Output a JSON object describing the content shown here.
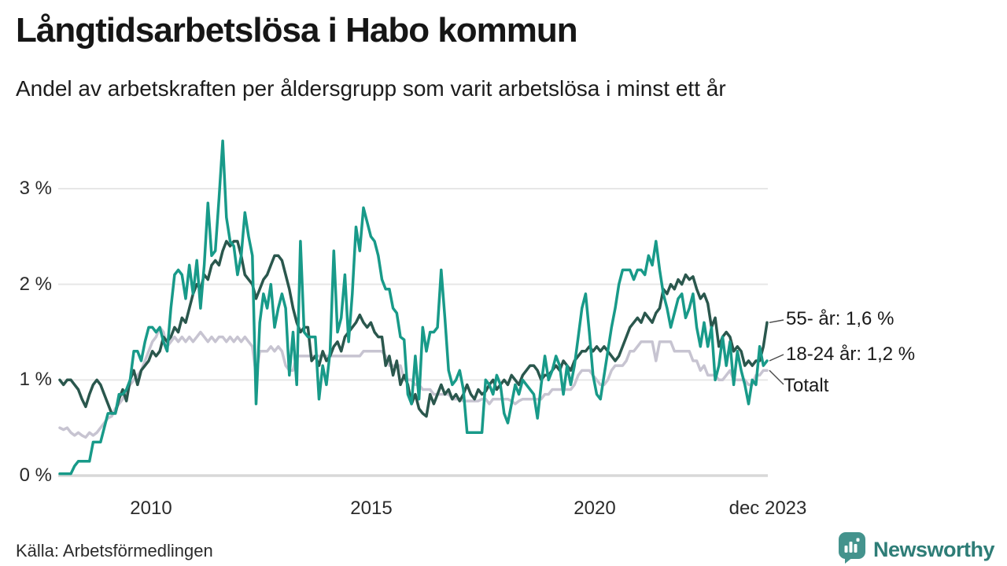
{
  "header": {
    "title": "Långtidsarbetslösa i Habo kommun",
    "subtitle": "Andel av arbetskraften per åldersgrupp som varit arbetslösa i minst ett år"
  },
  "footer": {
    "source": "Källa: Arbetsförmedlingen",
    "brand": "Newsworthy"
  },
  "colors": {
    "series_18_24": "#189a89",
    "series_55": "#2a574d",
    "series_totalt": "#c7c4d1",
    "gridline": "#e7e7e7",
    "axisline": "#d8d8d8",
    "connector": "#4a4a4a",
    "brand_teal": "#44938d"
  },
  "chart_data": {
    "type": "line",
    "title": "Långtidsarbetslösa i Habo kommun",
    "subtitle": "Andel av arbetskraften per åldersgrupp som varit arbetslösa i minst ett år",
    "unit": "%",
    "x_start": "2008-01",
    "x_end": "2023-12",
    "x_interval": "monthly",
    "x_ticks": [
      "2010",
      "2015",
      "2020",
      "dec 2023"
    ],
    "y_ticks": [
      "0 %",
      "1 %",
      "2 %",
      "3 %"
    ],
    "ylim": [
      0,
      3.6
    ],
    "grid": true,
    "legend_position": "line-end-labels-right",
    "series": [
      {
        "name": "55- år",
        "end_label": "55- år: 1,6 %",
        "last_value": 1.6,
        "color": "#2a574d",
        "values": [
          1.0,
          0.95,
          1.0,
          1.0,
          0.95,
          0.9,
          0.8,
          0.72,
          0.85,
          0.95,
          1.0,
          0.95,
          0.85,
          0.75,
          0.65,
          0.65,
          0.8,
          0.9,
          0.78,
          1.0,
          1.1,
          0.95,
          1.1,
          1.15,
          1.2,
          1.3,
          1.25,
          1.3,
          1.45,
          1.4,
          1.45,
          1.55,
          1.5,
          1.65,
          1.6,
          1.75,
          1.9,
          2.0,
          1.95,
          2.1,
          2.05,
          2.2,
          2.25,
          2.2,
          2.35,
          2.45,
          2.4,
          2.45,
          2.45,
          2.3,
          2.1,
          2.05,
          2.0,
          1.85,
          1.95,
          2.05,
          2.1,
          2.2,
          2.3,
          2.3,
          2.25,
          2.1,
          1.95,
          1.75,
          1.6,
          1.5,
          1.55,
          1.55,
          1.2,
          1.25,
          1.15,
          1.3,
          1.2,
          1.25,
          1.35,
          1.4,
          1.3,
          1.45,
          1.5,
          1.55,
          1.6,
          1.68,
          1.6,
          1.55,
          1.6,
          1.5,
          1.45,
          1.45,
          1.15,
          1.25,
          1.05,
          1.2,
          0.95,
          1.05,
          0.95,
          0.75,
          0.85,
          0.7,
          0.65,
          0.62,
          0.85,
          0.75,
          0.85,
          0.95,
          0.85,
          0.9,
          0.8,
          0.85,
          0.78,
          0.85,
          0.95,
          0.85,
          0.8,
          0.9,
          0.85,
          0.88,
          0.95,
          1.0,
          0.9,
          0.95,
          1.0,
          0.95,
          1.05,
          1.0,
          0.95,
          1.05,
          1.1,
          1.15,
          1.15,
          1.1,
          1.0,
          1.05,
          1.05,
          1.1,
          1.15,
          1.1,
          1.2,
          1.15,
          1.1,
          1.2,
          1.25,
          1.3,
          1.3,
          1.35,
          1.3,
          1.35,
          1.3,
          1.35,
          1.3,
          1.25,
          1.2,
          1.25,
          1.35,
          1.45,
          1.55,
          1.6,
          1.65,
          1.6,
          1.7,
          1.65,
          1.6,
          1.7,
          1.75,
          1.95,
          1.9,
          2.0,
          1.95,
          2.05,
          2.0,
          2.1,
          2.05,
          2.08,
          1.95,
          1.85,
          1.9,
          1.8,
          1.55,
          1.65,
          1.35,
          1.45,
          1.5,
          1.45,
          1.3,
          1.35,
          1.3,
          1.15,
          1.2,
          1.15,
          1.2,
          1.2,
          1.35,
          1.6
        ]
      },
      {
        "name": "18-24 år",
        "end_label": "18-24 år: 1,2 %",
        "last_value": 1.2,
        "color": "#189a89",
        "values": [
          0.02,
          0.02,
          0.02,
          0.02,
          0.1,
          0.15,
          0.15,
          0.15,
          0.15,
          0.35,
          0.35,
          0.35,
          0.5,
          0.65,
          0.65,
          0.65,
          0.85,
          0.85,
          0.9,
          1.0,
          1.3,
          1.3,
          1.2,
          1.4,
          1.55,
          1.55,
          1.5,
          1.55,
          1.4,
          1.3,
          1.75,
          2.1,
          2.15,
          2.1,
          1.85,
          2.2,
          1.9,
          2.25,
          1.75,
          2.2,
          2.85,
          2.3,
          2.35,
          2.9,
          3.5,
          2.7,
          2.45,
          2.4,
          2.1,
          2.3,
          2.75,
          2.5,
          2.3,
          0.75,
          1.6,
          1.9,
          1.75,
          2.0,
          1.55,
          1.75,
          1.9,
          1.75,
          1.05,
          1.5,
          0.95,
          2.45,
          1.5,
          1.45,
          1.45,
          1.45,
          0.8,
          1.15,
          0.95,
          1.3,
          2.35,
          1.5,
          1.65,
          2.1,
          1.4,
          1.9,
          2.6,
          2.35,
          2.8,
          2.65,
          2.5,
          2.45,
          2.3,
          2.05,
          1.95,
          1.95,
          1.75,
          1.7,
          1.45,
          1.42,
          0.85,
          0.75,
          1.25,
          0.8,
          1.55,
          1.3,
          1.5,
          1.5,
          1.55,
          2.15,
          1.65,
          1.1,
          0.95,
          1.0,
          1.1,
          0.9,
          0.45,
          0.45,
          0.45,
          0.45,
          0.45,
          1.0,
          0.95,
          0.85,
          1.05,
          0.95,
          0.65,
          0.55,
          0.75,
          0.95,
          0.85,
          1.0,
          0.95,
          0.9,
          0.85,
          0.6,
          0.95,
          1.25,
          1.0,
          1.1,
          1.25,
          1.15,
          0.85,
          1.15,
          0.95,
          1.15,
          1.45,
          1.75,
          1.9,
          1.5,
          1.05,
          0.85,
          0.8,
          1.05,
          1.3,
          1.55,
          1.75,
          2.0,
          2.15,
          2.15,
          2.15,
          2.05,
          2.15,
          2.15,
          2.1,
          2.3,
          2.2,
          2.45,
          2.15,
          1.9,
          1.75,
          1.55,
          1.7,
          1.85,
          1.9,
          1.65,
          1.75,
          1.9,
          1.55,
          1.35,
          1.6,
          1.35,
          1.55,
          1.0,
          1.15,
          1.45,
          1.15,
          1.4,
          0.95,
          1.3,
          1.1,
          0.95,
          0.75,
          1.0,
          0.95,
          1.35,
          1.15,
          1.2
        ]
      },
      {
        "name": "Totalt",
        "end_label": "Totalt",
        "last_value": 1.1,
        "color": "#c7c4d1",
        "values": [
          0.5,
          0.48,
          0.5,
          0.45,
          0.42,
          0.45,
          0.42,
          0.4,
          0.45,
          0.42,
          0.45,
          0.5,
          0.55,
          0.6,
          0.62,
          0.7,
          0.75,
          0.8,
          0.9,
          0.95,
          1.0,
          1.05,
          1.1,
          1.2,
          1.3,
          1.4,
          1.45,
          1.55,
          1.5,
          1.35,
          1.4,
          1.45,
          1.4,
          1.45,
          1.4,
          1.45,
          1.4,
          1.45,
          1.5,
          1.45,
          1.4,
          1.45,
          1.4,
          1.45,
          1.45,
          1.4,
          1.45,
          1.4,
          1.45,
          1.4,
          1.45,
          1.4,
          1.35,
          1.05,
          1.3,
          1.3,
          1.3,
          1.35,
          1.3,
          1.35,
          1.3,
          1.15,
          1.1,
          1.1,
          1.25,
          1.25,
          1.25,
          1.25,
          1.25,
          1.25,
          1.25,
          1.25,
          1.25,
          1.25,
          1.25,
          1.25,
          1.25,
          1.25,
          1.25,
          1.25,
          1.25,
          1.25,
          1.3,
          1.3,
          1.3,
          1.3,
          1.3,
          1.3,
          1.25,
          1.15,
          1.15,
          1.15,
          1.15,
          1.0,
          1.0,
          1.0,
          0.95,
          0.95,
          0.9,
          0.9,
          0.9,
          0.85,
          0.85,
          0.85,
          0.85,
          0.85,
          0.8,
          0.8,
          0.8,
          0.78,
          0.78,
          0.78,
          0.78,
          0.78,
          0.8,
          0.8,
          0.75,
          0.8,
          0.8,
          0.8,
          0.8,
          0.8,
          0.78,
          0.75,
          0.78,
          0.8,
          0.8,
          0.8,
          0.8,
          0.8,
          0.8,
          0.85,
          0.85,
          0.9,
          0.9,
          0.9,
          0.9,
          0.9,
          0.9,
          0.95,
          1.05,
          1.1,
          1.1,
          1.1,
          1.05,
          1.0,
          0.95,
          0.95,
          1.0,
          1.1,
          1.15,
          1.15,
          1.15,
          1.2,
          1.3,
          1.3,
          1.35,
          1.4,
          1.4,
          1.4,
          1.4,
          1.2,
          1.4,
          1.4,
          1.4,
          1.4,
          1.3,
          1.3,
          1.3,
          1.3,
          1.3,
          1.2,
          1.2,
          1.1,
          1.15,
          1.05,
          1.05,
          1.05,
          1.0,
          1.0,
          1.05,
          1.1,
          1.0,
          1.0,
          1.0,
          1.0,
          0.95,
          0.95,
          1.05,
          1.05,
          1.1,
          1.1
        ]
      }
    ]
  }
}
